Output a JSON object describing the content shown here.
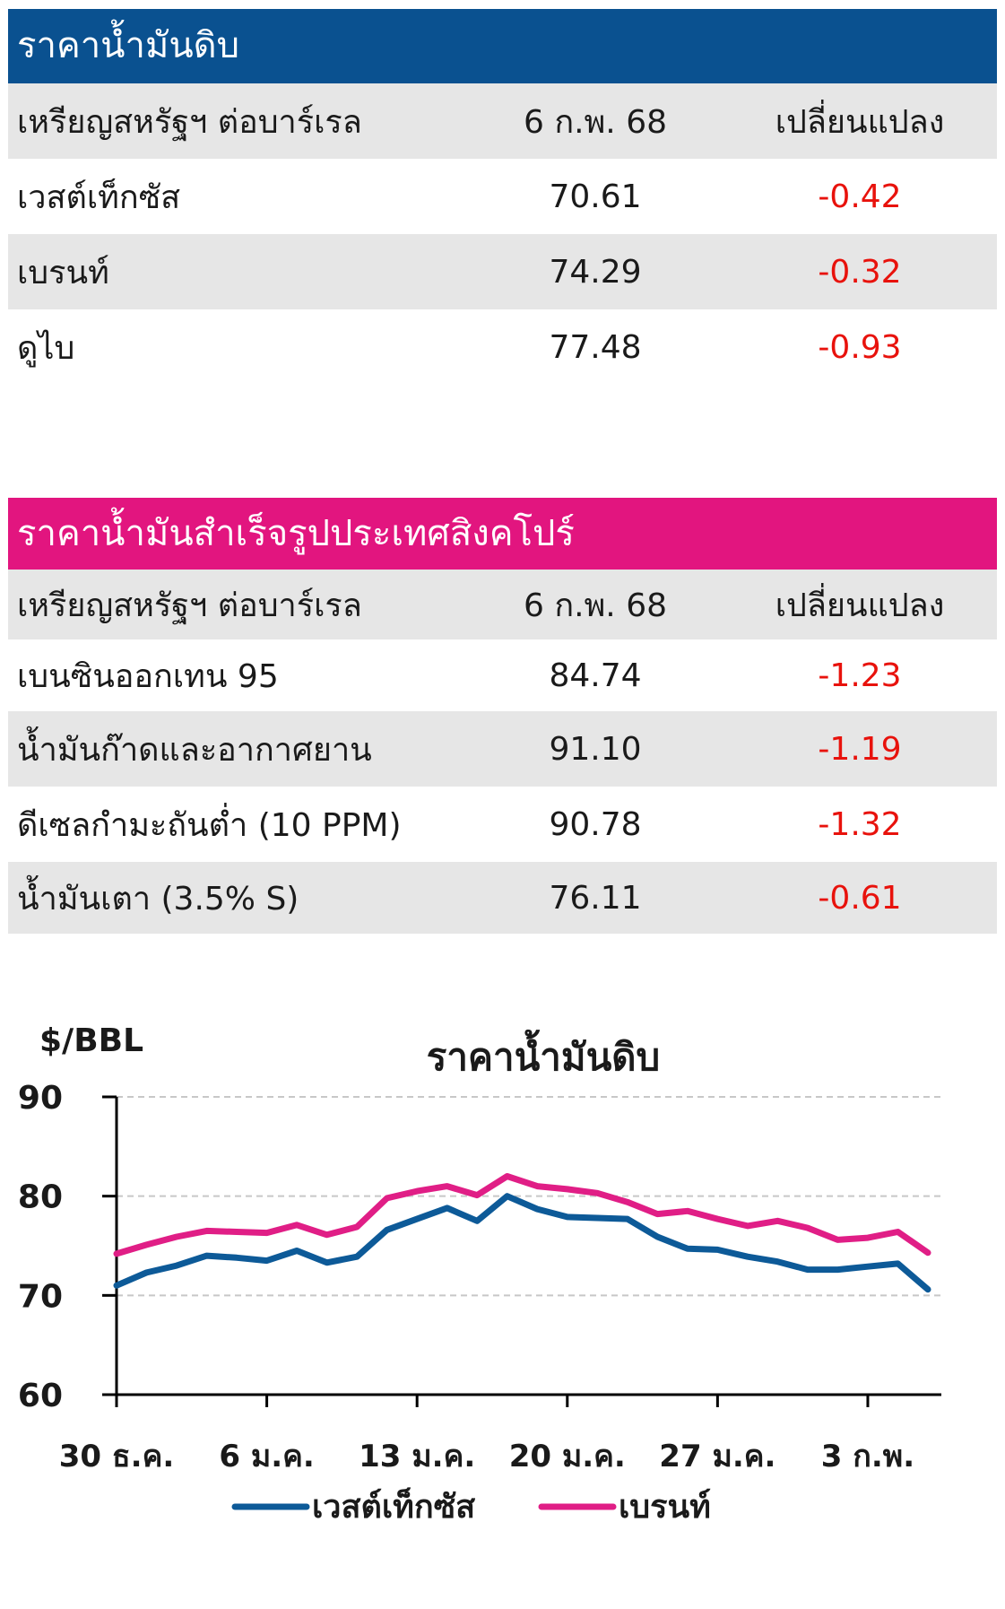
{
  "crude_table": {
    "title": "ราคาน้ำมันดิบ",
    "header_color": "#0a5190",
    "columns": [
      "เหรียญสหรัฐฯ ต่อบาร์เรล",
      "6 ก.พ. 68",
      "เปลี่ยนแปลง"
    ],
    "rows": [
      {
        "name": "เวสต์เท็กซัส",
        "value": "70.61",
        "change": "-0.42"
      },
      {
        "name": "เบรนท์",
        "value": "74.29",
        "change": "-0.32"
      },
      {
        "name": "ดูไบ",
        "value": "77.48",
        "change": "-0.93"
      }
    ]
  },
  "products_table": {
    "title": "ราคาน้ำมันสำเร็จรูปประเทศสิงคโปร์",
    "header_color": "#e2157f",
    "columns": [
      "เหรียญสหรัฐฯ ต่อบาร์เรล",
      "6 ก.พ. 68",
      "เปลี่ยนแปลง"
    ],
    "rows": [
      {
        "name": "เบนซินออกเทน 95",
        "value": "84.74",
        "change": "-1.23"
      },
      {
        "name": "น้ำมันก๊าดและอากาศยาน",
        "value": "91.10",
        "change": "-1.19"
      },
      {
        "name": "ดีเซลกำมะถันต่ำ (10 PPM)",
        "value": "90.78",
        "change": "-1.32"
      },
      {
        "name": "น้ำมันเตา (3.5% S)",
        "value": "76.11",
        "change": "-0.61"
      }
    ]
  },
  "chart_data": {
    "type": "line",
    "title": "ราคาน้ำมันดิบ",
    "ylabel": "$/BBL",
    "ylim": [
      60,
      90
    ],
    "yticks": [
      60,
      70,
      80,
      90
    ],
    "xlim": [
      0,
      27
    ],
    "xticks": [
      {
        "x": 0,
        "label": "30 ธ.ค."
      },
      {
        "x": 5,
        "label": "6 ม.ค."
      },
      {
        "x": 10,
        "label": "13 ม.ค."
      },
      {
        "x": 15,
        "label": "20 ม.ค."
      },
      {
        "x": 20,
        "label": "27 ม.ค."
      },
      {
        "x": 25,
        "label": "3 ก.พ."
      }
    ],
    "grid": "horizontal dashed",
    "legend": "bottom",
    "series": [
      {
        "name": "เวสต์เท็กซัส",
        "color": "#0d5a98",
        "x": [
          0,
          1,
          2,
          3,
          4,
          5,
          6,
          7,
          8,
          9,
          10,
          11,
          12,
          13,
          14,
          15,
          16,
          17,
          18,
          19,
          20,
          21,
          22,
          23,
          24,
          25,
          26,
          27
        ],
        "values": [
          71.0,
          72.3,
          73.0,
          74.0,
          73.8,
          73.5,
          74.5,
          73.3,
          73.9,
          76.6,
          77.7,
          78.8,
          77.5,
          80.0,
          78.7,
          77.9,
          77.8,
          77.7,
          75.9,
          74.7,
          74.6,
          73.9,
          73.4,
          72.6,
          72.6,
          72.9,
          73.2,
          70.6
        ]
      },
      {
        "name": "เบรนท์",
        "color": "#e01e86",
        "x": [
          0,
          1,
          2,
          3,
          4,
          5,
          6,
          7,
          8,
          9,
          10,
          11,
          12,
          13,
          14,
          15,
          16,
          17,
          18,
          19,
          20,
          21,
          22,
          23,
          24,
          25,
          26,
          27
        ],
        "values": [
          74.2,
          75.1,
          75.9,
          76.5,
          76.4,
          76.3,
          77.1,
          76.1,
          76.9,
          79.8,
          80.5,
          81.0,
          80.1,
          82.0,
          81.0,
          80.7,
          80.3,
          79.4,
          78.2,
          78.5,
          77.7,
          77.0,
          77.5,
          76.8,
          75.6,
          75.8,
          76.4,
          74.3
        ]
      }
    ]
  }
}
